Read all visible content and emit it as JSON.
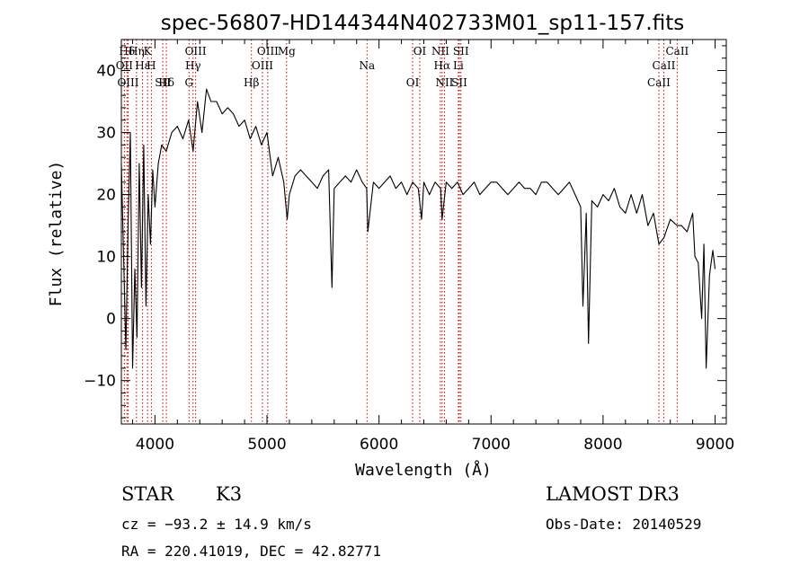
{
  "chart_data": {
    "type": "line",
    "title": "spec-56807-HD144344N402733M01_sp11-157.fits",
    "xlabel": "Wavelength (Å)",
    "ylabel": "Flux (relative)",
    "xlim": [
      3700,
      9100
    ],
    "ylim": [
      -17,
      45
    ],
    "xticks": [
      4000,
      5000,
      6000,
      7000,
      8000,
      9000
    ],
    "yticks": [
      -10,
      0,
      10,
      20,
      30,
      40
    ],
    "line_color": "#000000",
    "marker_color": "#cc0000",
    "series": [
      {
        "x": [
          3700,
          3720,
          3740,
          3760,
          3780,
          3800,
          3820,
          3840,
          3860,
          3880,
          3900,
          3920,
          3940,
          3960,
          3980,
          4000,
          4030,
          4060,
          4100,
          4150,
          4200,
          4250,
          4300,
          4340,
          4380,
          4420,
          4460,
          4500,
          4550,
          4600,
          4650,
          4700,
          4750,
          4800,
          4850,
          4900,
          4950,
          5000,
          5050,
          5100,
          5150,
          5180,
          5200,
          5250,
          5300,
          5350,
          5400,
          5450,
          5500,
          5550,
          5580,
          5600,
          5650,
          5700,
          5750,
          5800,
          5850,
          5890,
          5900,
          5950,
          6000,
          6050,
          6100,
          6150,
          6200,
          6250,
          6300,
          6350,
          6380,
          6400,
          6450,
          6500,
          6550,
          6563,
          6600,
          6650,
          6700,
          6750,
          6800,
          6850,
          6900,
          6950,
          7000,
          7050,
          7100,
          7150,
          7200,
          7250,
          7300,
          7350,
          7400,
          7450,
          7500,
          7550,
          7600,
          7650,
          7700,
          7750,
          7800,
          7820,
          7850,
          7870,
          7900,
          7950,
          8000,
          8050,
          8100,
          8150,
          8200,
          8250,
          8300,
          8350,
          8400,
          8450,
          8498,
          8542,
          8600,
          8662,
          8700,
          8750,
          8800,
          8820,
          8850,
          8880,
          8900,
          8920,
          8950,
          8980,
          9000
        ],
        "y": [
          25,
          10,
          -5,
          15,
          30,
          -8,
          8,
          -3,
          25,
          5,
          28,
          2,
          20,
          12,
          24,
          18,
          25,
          28,
          27,
          30,
          31,
          29,
          32,
          27,
          35,
          30,
          37,
          35,
          35,
          33,
          34,
          33,
          31,
          32,
          29,
          31,
          28,
          30,
          23,
          26,
          22,
          16,
          20,
          23,
          24,
          23,
          22,
          21,
          23,
          24,
          5,
          21,
          22,
          23,
          22,
          24,
          22,
          21,
          14,
          22,
          21,
          22,
          23,
          21,
          22,
          20,
          22,
          21,
          16,
          22,
          20,
          22,
          21,
          16,
          22,
          21,
          22,
          20,
          21,
          22,
          20,
          21,
          22,
          22,
          21,
          20,
          21,
          22,
          21,
          21,
          20,
          22,
          22,
          21,
          20,
          21,
          22,
          20,
          18,
          2,
          17,
          -4,
          19,
          18,
          20,
          19,
          21,
          18,
          17,
          20,
          17,
          20,
          15,
          17,
          12,
          13,
          16,
          15,
          15,
          14,
          17,
          10,
          9,
          0,
          12,
          -8,
          7,
          11,
          8
        ]
      }
    ],
    "annotations": [
      {
        "text": "Hδ",
        "x": 3750
      },
      {
        "text": "OII",
        "x": 3727
      },
      {
        "text": "OIII",
        "x": 3760
      },
      {
        "text": "K",
        "x": 3934
      },
      {
        "text": "Hε",
        "x": 3889
      },
      {
        "text": "SII",
        "x": 4070
      },
      {
        "text": "Hη",
        "x": 3835
      },
      {
        "text": "H",
        "x": 3968
      },
      {
        "text": "Hδ",
        "x": 4102
      },
      {
        "text": "OIII",
        "x": 4363
      },
      {
        "text": "Hγ",
        "x": 4340
      },
      {
        "text": "G",
        "x": 4304
      },
      {
        "text": "OIII",
        "x": 5007
      },
      {
        "text": "OIII",
        "x": 4959
      },
      {
        "text": "Hβ",
        "x": 4861
      },
      {
        "text": "Mg",
        "x": 5175
      },
      {
        "text": "Na",
        "x": 5893
      },
      {
        "text": "OI",
        "x": 6300
      },
      {
        "text": "OI",
        "x": 6364
      },
      {
        "text": "Hα",
        "x": 6563
      },
      {
        "text": "SII",
        "x": 6717
      },
      {
        "text": "NII",
        "x": 6548
      },
      {
        "text": "Li",
        "x": 6708
      },
      {
        "text": "NII",
        "x": 6584
      },
      {
        "text": "SII",
        "x": 6731
      },
      {
        "text": "CaII",
        "x": 8542
      },
      {
        "text": "CaII",
        "x": 8498
      },
      {
        "text": "CaII",
        "x": 8662
      }
    ]
  },
  "info": {
    "object_class": "STAR",
    "subclass": "K3",
    "survey": "LAMOST DR3",
    "redshift_line": "cz = −93.2 ± 14.9 km/s",
    "obs_date": "Obs-Date: 20140529",
    "coords": "RA = 220.41019, DEC =  42.82771"
  }
}
